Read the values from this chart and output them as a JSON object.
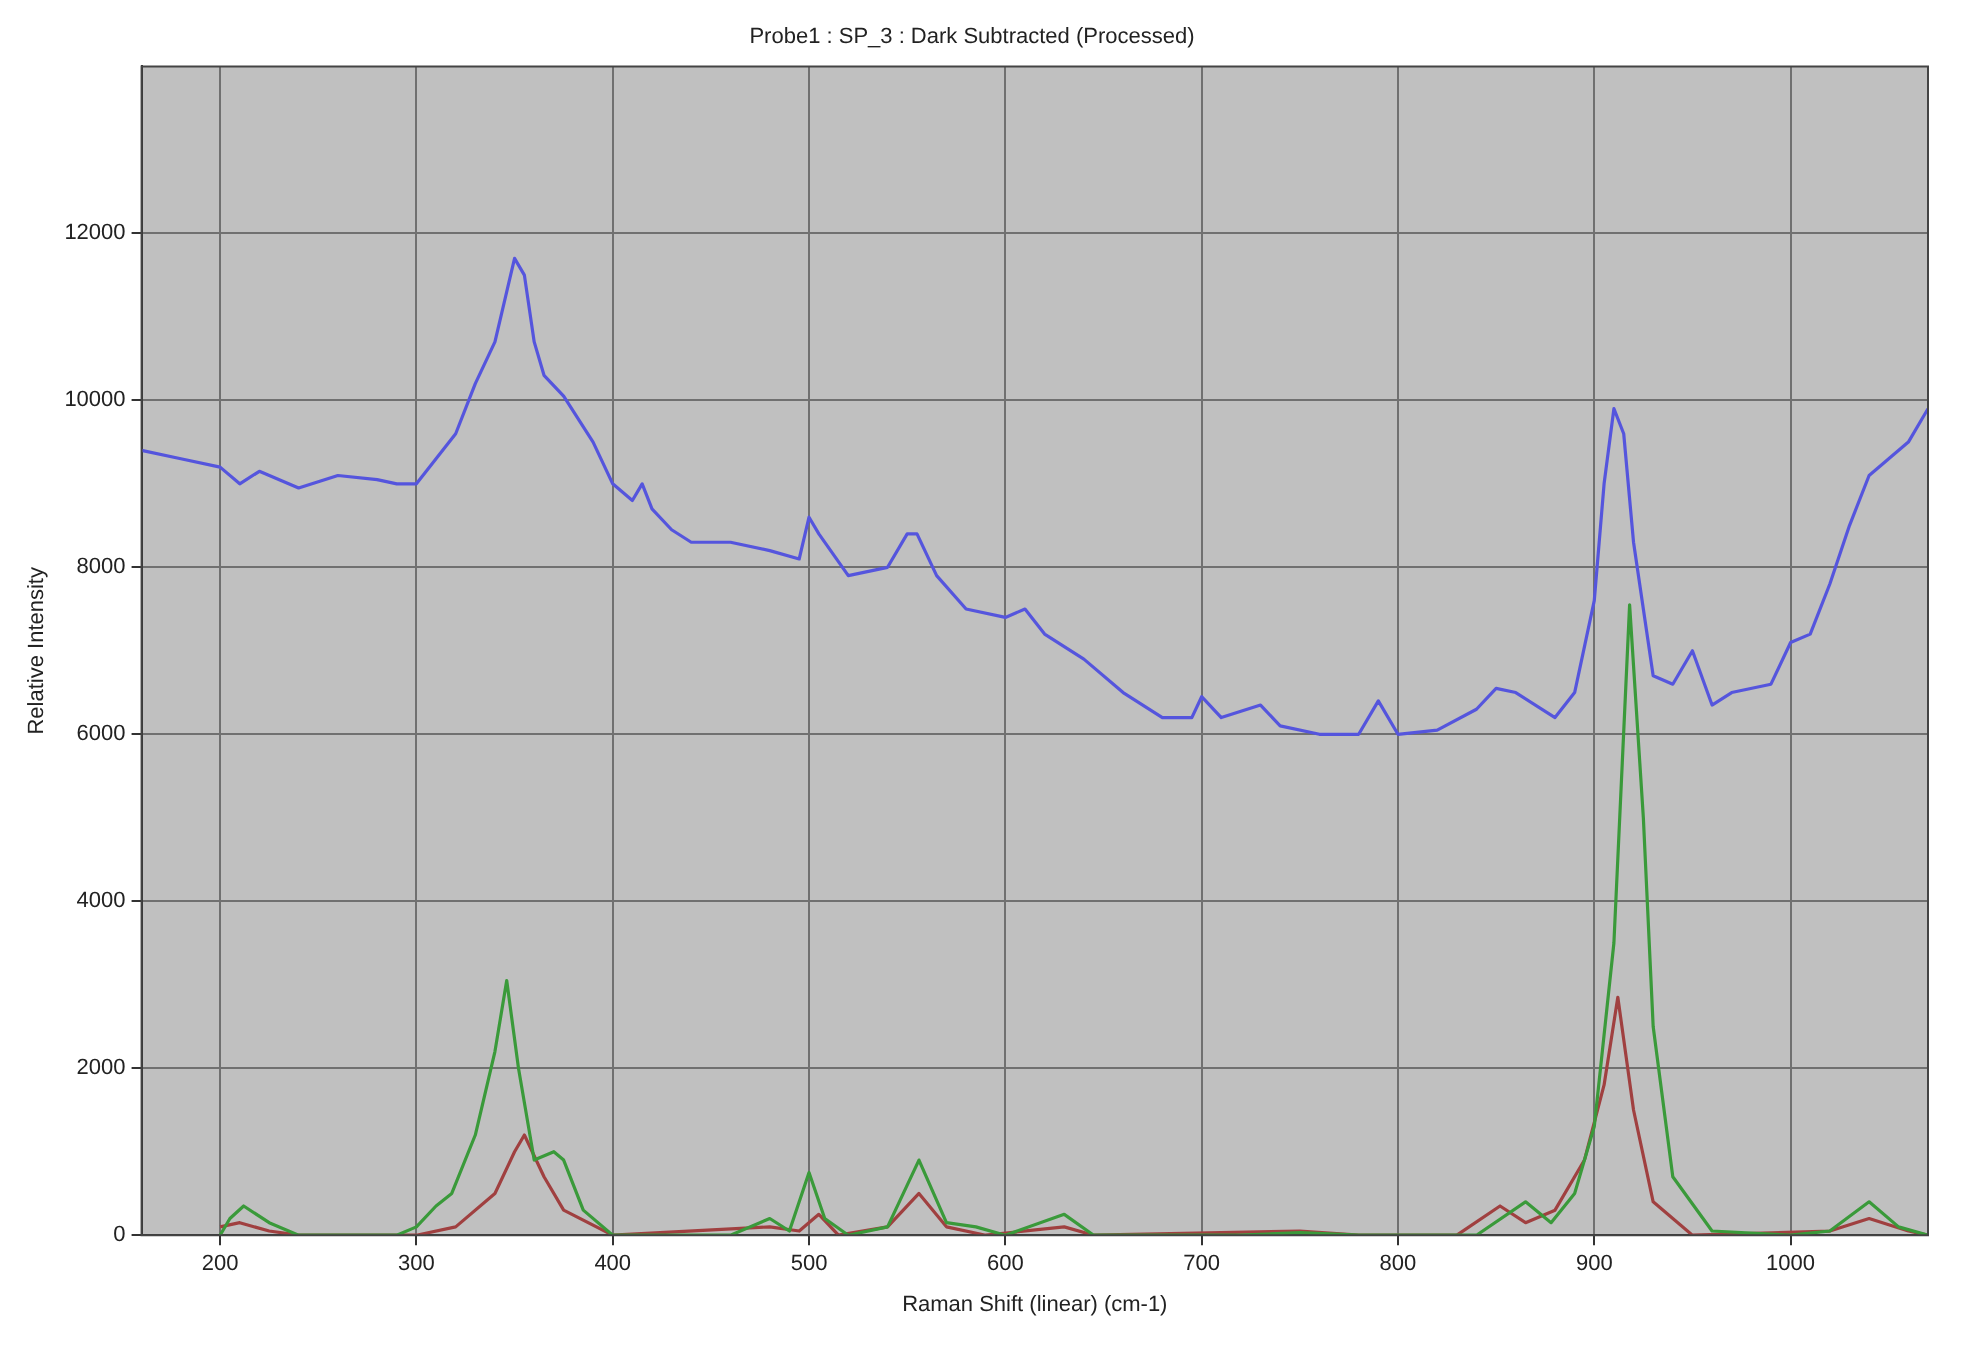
{
  "chart_data": {
    "type": "line",
    "title": "Probe1 : SP_3 : Dark Subtracted (Processed)",
    "xlabel": "Raman Shift (linear) (cm-1)",
    "ylabel": "Relative Intensity",
    "xlim": [
      160,
      1070
    ],
    "xticks": [
      200,
      300,
      400,
      500,
      600,
      700,
      800,
      900,
      1000
    ],
    "ylim": [
      0,
      14000
    ],
    "yticks": [
      0,
      2000,
      4000,
      6000,
      8000,
      10000,
      12000
    ],
    "grid": true,
    "legend": false,
    "marker": "none",
    "line_style": "solid",
    "series": [
      {
        "color": "#5555dd",
        "x": [
          160,
          180,
          200,
          210,
          220,
          240,
          260,
          280,
          290,
          300,
          310,
          320,
          330,
          340,
          345,
          350,
          355,
          360,
          365,
          375,
          390,
          400,
          410,
          415,
          420,
          430,
          440,
          460,
          480,
          495,
          500,
          505,
          520,
          540,
          550,
          555,
          565,
          580,
          600,
          610,
          620,
          640,
          660,
          680,
          695,
          700,
          710,
          730,
          740,
          760,
          780,
          790,
          800,
          820,
          840,
          850,
          860,
          880,
          890,
          900,
          905,
          910,
          915,
          920,
          930,
          940,
          950,
          960,
          970,
          990,
          1000,
          1010,
          1020,
          1030,
          1040,
          1050,
          1060,
          1070
        ],
        "values": [
          9400,
          9300,
          9200,
          9000,
          9150,
          8950,
          9100,
          9050,
          9000,
          9000,
          9300,
          9600,
          10200,
          10700,
          11200,
          11700,
          11500,
          10700,
          10300,
          10050,
          9500,
          9000,
          8800,
          9000,
          8700,
          8450,
          8300,
          8300,
          8200,
          8100,
          8600,
          8400,
          7900,
          8000,
          8400,
          8400,
          7900,
          7500,
          7400,
          7500,
          7200,
          6900,
          6500,
          6200,
          6200,
          6450,
          6200,
          6350,
          6100,
          6000,
          6000,
          6400,
          6000,
          6050,
          6300,
          6550,
          6500,
          6200,
          6500,
          7600,
          9000,
          9900,
          9600,
          8300,
          6700,
          6600,
          7000,
          6350,
          6500,
          6600,
          7100,
          7200,
          7800,
          8500,
          9100,
          9300,
          9500,
          9900
        ]
      },
      {
        "color": "#3a9a3a",
        "x": [
          200,
          205,
          212,
          225,
          240,
          290,
          300,
          310,
          318,
          330,
          340,
          346,
          352,
          360,
          370,
          375,
          385,
          400,
          460,
          480,
          490,
          500,
          508,
          520,
          540,
          556,
          570,
          585,
          600,
          630,
          645,
          720,
          750,
          780,
          840,
          865,
          878,
          890,
          900,
          910,
          918,
          925,
          930,
          940,
          960,
          1000,
          1020,
          1040,
          1055,
          1070
        ],
        "values": [
          0,
          200,
          350,
          150,
          0,
          0,
          100,
          350,
          500,
          1200,
          2200,
          3050,
          2000,
          900,
          1000,
          900,
          300,
          0,
          0,
          200,
          50,
          750,
          200,
          0,
          100,
          900,
          150,
          100,
          0,
          250,
          0,
          0,
          30,
          0,
          0,
          400,
          150,
          500,
          1300,
          3500,
          7550,
          5000,
          2500,
          700,
          50,
          0,
          50,
          400,
          100,
          0
        ]
      },
      {
        "color": "#a04040",
        "x": [
          200,
          210,
          225,
          240,
          300,
          320,
          340,
          350,
          355,
          365,
          375,
          400,
          480,
          495,
          505,
          515,
          540,
          556,
          570,
          590,
          630,
          645,
          750,
          780,
          830,
          852,
          865,
          880,
          895,
          905,
          912,
          920,
          930,
          950,
          1020,
          1040,
          1060,
          1070
        ],
        "values": [
          100,
          150,
          50,
          0,
          0,
          100,
          500,
          1000,
          1200,
          700,
          300,
          0,
          100,
          50,
          250,
          0,
          100,
          500,
          100,
          0,
          100,
          0,
          50,
          0,
          0,
          350,
          150,
          300,
          900,
          1800,
          2850,
          1500,
          400,
          0,
          50,
          200,
          50,
          0
        ]
      }
    ]
  }
}
